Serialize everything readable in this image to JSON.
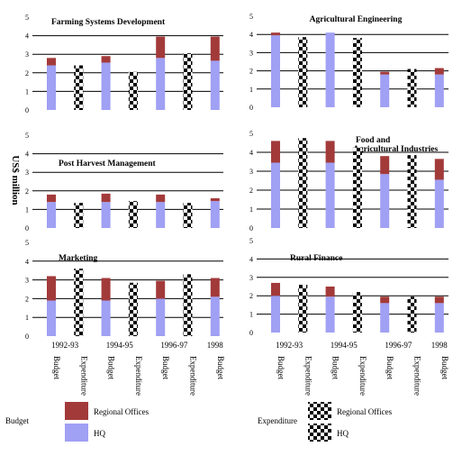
{
  "y_axis_label": "US$ million",
  "colors": {
    "regional": "#a33a3a",
    "hq": "#a0a0f4",
    "gridline": "#000000"
  },
  "x_category_labels": [
    "Budget",
    "Expenditure",
    "Budget",
    "Expenditure",
    "Budget",
    "Expenditure",
    "Budget"
  ],
  "period_labels": [
    "1992-93",
    "1994-95",
    "1996-97",
    "1998"
  ],
  "legend": {
    "budget_group": "Budget",
    "expenditure_group": "Expenditure",
    "regional_offices": "Regional Offices",
    "hq": "HQ"
  },
  "chart_data": [
    {
      "type": "bar",
      "stacked": true,
      "title": "Farming Systems Development",
      "categories": [
        "Budget 1992-93",
        "Expenditure 1992-93",
        "Budget 1994-95",
        "Expenditure 1994-95",
        "Budget 1996-97",
        "Expenditure 1996-97",
        "Budget 1998"
      ],
      "series": [
        {
          "name": "HQ",
          "values": [
            2.4,
            1.8,
            2.55,
            1.6,
            2.8,
            2.4,
            2.65
          ]
        },
        {
          "name": "Regional Offices",
          "values": [
            0.4,
            0.6,
            0.35,
            0.45,
            1.15,
            0.65,
            1.3
          ]
        }
      ],
      "ylim": [
        0,
        5
      ],
      "yticks": [
        0,
        1,
        2,
        3,
        4,
        5
      ]
    },
    {
      "type": "bar",
      "stacked": true,
      "title": "Agricultural Engineering",
      "categories": [
        "Budget 1992-93",
        "Expenditure 1992-93",
        "Budget 1994-95",
        "Expenditure 1994-95",
        "Budget 1996-97",
        "Expenditure 1996-97",
        "Budget 1998"
      ],
      "series": [
        {
          "name": "HQ",
          "values": [
            3.95,
            3.8,
            4.1,
            3.75,
            1.8,
            2.05,
            1.8
          ]
        },
        {
          "name": "Regional Offices",
          "values": [
            0.15,
            0.05,
            0.0,
            0.05,
            0.15,
            0.05,
            0.35
          ]
        }
      ],
      "ylim": [
        0,
        5
      ],
      "yticks": [
        0,
        1,
        2,
        3,
        4,
        5
      ]
    },
    {
      "type": "bar",
      "stacked": true,
      "title": "Post Harvest Management",
      "categories": [
        "Budget 1992-93",
        "Expenditure 1992-93",
        "Budget 1994-95",
        "Expenditure 1994-95",
        "Budget 1996-97",
        "Expenditure 1996-97",
        "Budget 1998"
      ],
      "series": [
        {
          "name": "HQ",
          "values": [
            1.4,
            1.1,
            1.4,
            1.2,
            1.4,
            1.1,
            1.45
          ]
        },
        {
          "name": "Regional Offices",
          "values": [
            0.4,
            0.25,
            0.45,
            0.25,
            0.4,
            0.25,
            0.15
          ]
        }
      ],
      "ylim": [
        0,
        5
      ],
      "yticks": [
        0,
        1,
        2,
        3,
        4,
        5
      ]
    },
    {
      "type": "bar",
      "stacked": true,
      "title": "Food and Agricultural Industries",
      "categories": [
        "Budget 1992-93",
        "Expenditure 1992-93",
        "Budget 1994-95",
        "Expenditure 1994-95",
        "Budget 1996-97",
        "Expenditure 1996-97",
        "Budget 1998"
      ],
      "series": [
        {
          "name": "HQ",
          "values": [
            3.45,
            3.65,
            3.45,
            3.2,
            2.85,
            2.85,
            2.55
          ]
        },
        {
          "name": "Regional Offices",
          "values": [
            1.15,
            1.1,
            1.15,
            1.05,
            0.95,
            1.0,
            1.1
          ]
        }
      ],
      "ylim": [
        0,
        5
      ],
      "yticks": [
        0,
        1,
        2,
        3,
        4,
        5
      ]
    },
    {
      "type": "bar",
      "stacked": true,
      "title": "Marketing",
      "categories": [
        "Budget 1992-93",
        "Expenditure 1992-93",
        "Budget 1994-95",
        "Expenditure 1994-95",
        "Budget 1996-97",
        "Expenditure 1996-97",
        "Budget 1998"
      ],
      "series": [
        {
          "name": "HQ",
          "values": [
            1.9,
            2.3,
            1.9,
            2.0,
            2.0,
            2.05,
            2.1
          ]
        },
        {
          "name": "Regional Offices",
          "values": [
            1.3,
            1.3,
            1.2,
            0.85,
            0.95,
            1.25,
            1.0
          ]
        }
      ],
      "ylim": [
        0,
        5
      ],
      "yticks": [
        0,
        1,
        2,
        3,
        4,
        5
      ]
    },
    {
      "type": "bar",
      "stacked": true,
      "title": "Rural Finance",
      "categories": [
        "Budget 1992-93",
        "Expenditure 1992-93",
        "Budget 1994-95",
        "Expenditure 1994-95",
        "Budget 1996-97",
        "Expenditure 1996-97",
        "Budget 1998"
      ],
      "series": [
        {
          "name": "HQ",
          "values": [
            2.0,
            1.9,
            1.95,
            1.65,
            1.6,
            1.55,
            1.6
          ]
        },
        {
          "name": "Regional Offices",
          "values": [
            0.7,
            0.7,
            0.55,
            0.55,
            0.35,
            0.4,
            0.35
          ]
        }
      ],
      "ylim": [
        0,
        5
      ],
      "yticks": [
        0,
        1,
        2,
        3,
        4,
        5
      ]
    }
  ]
}
